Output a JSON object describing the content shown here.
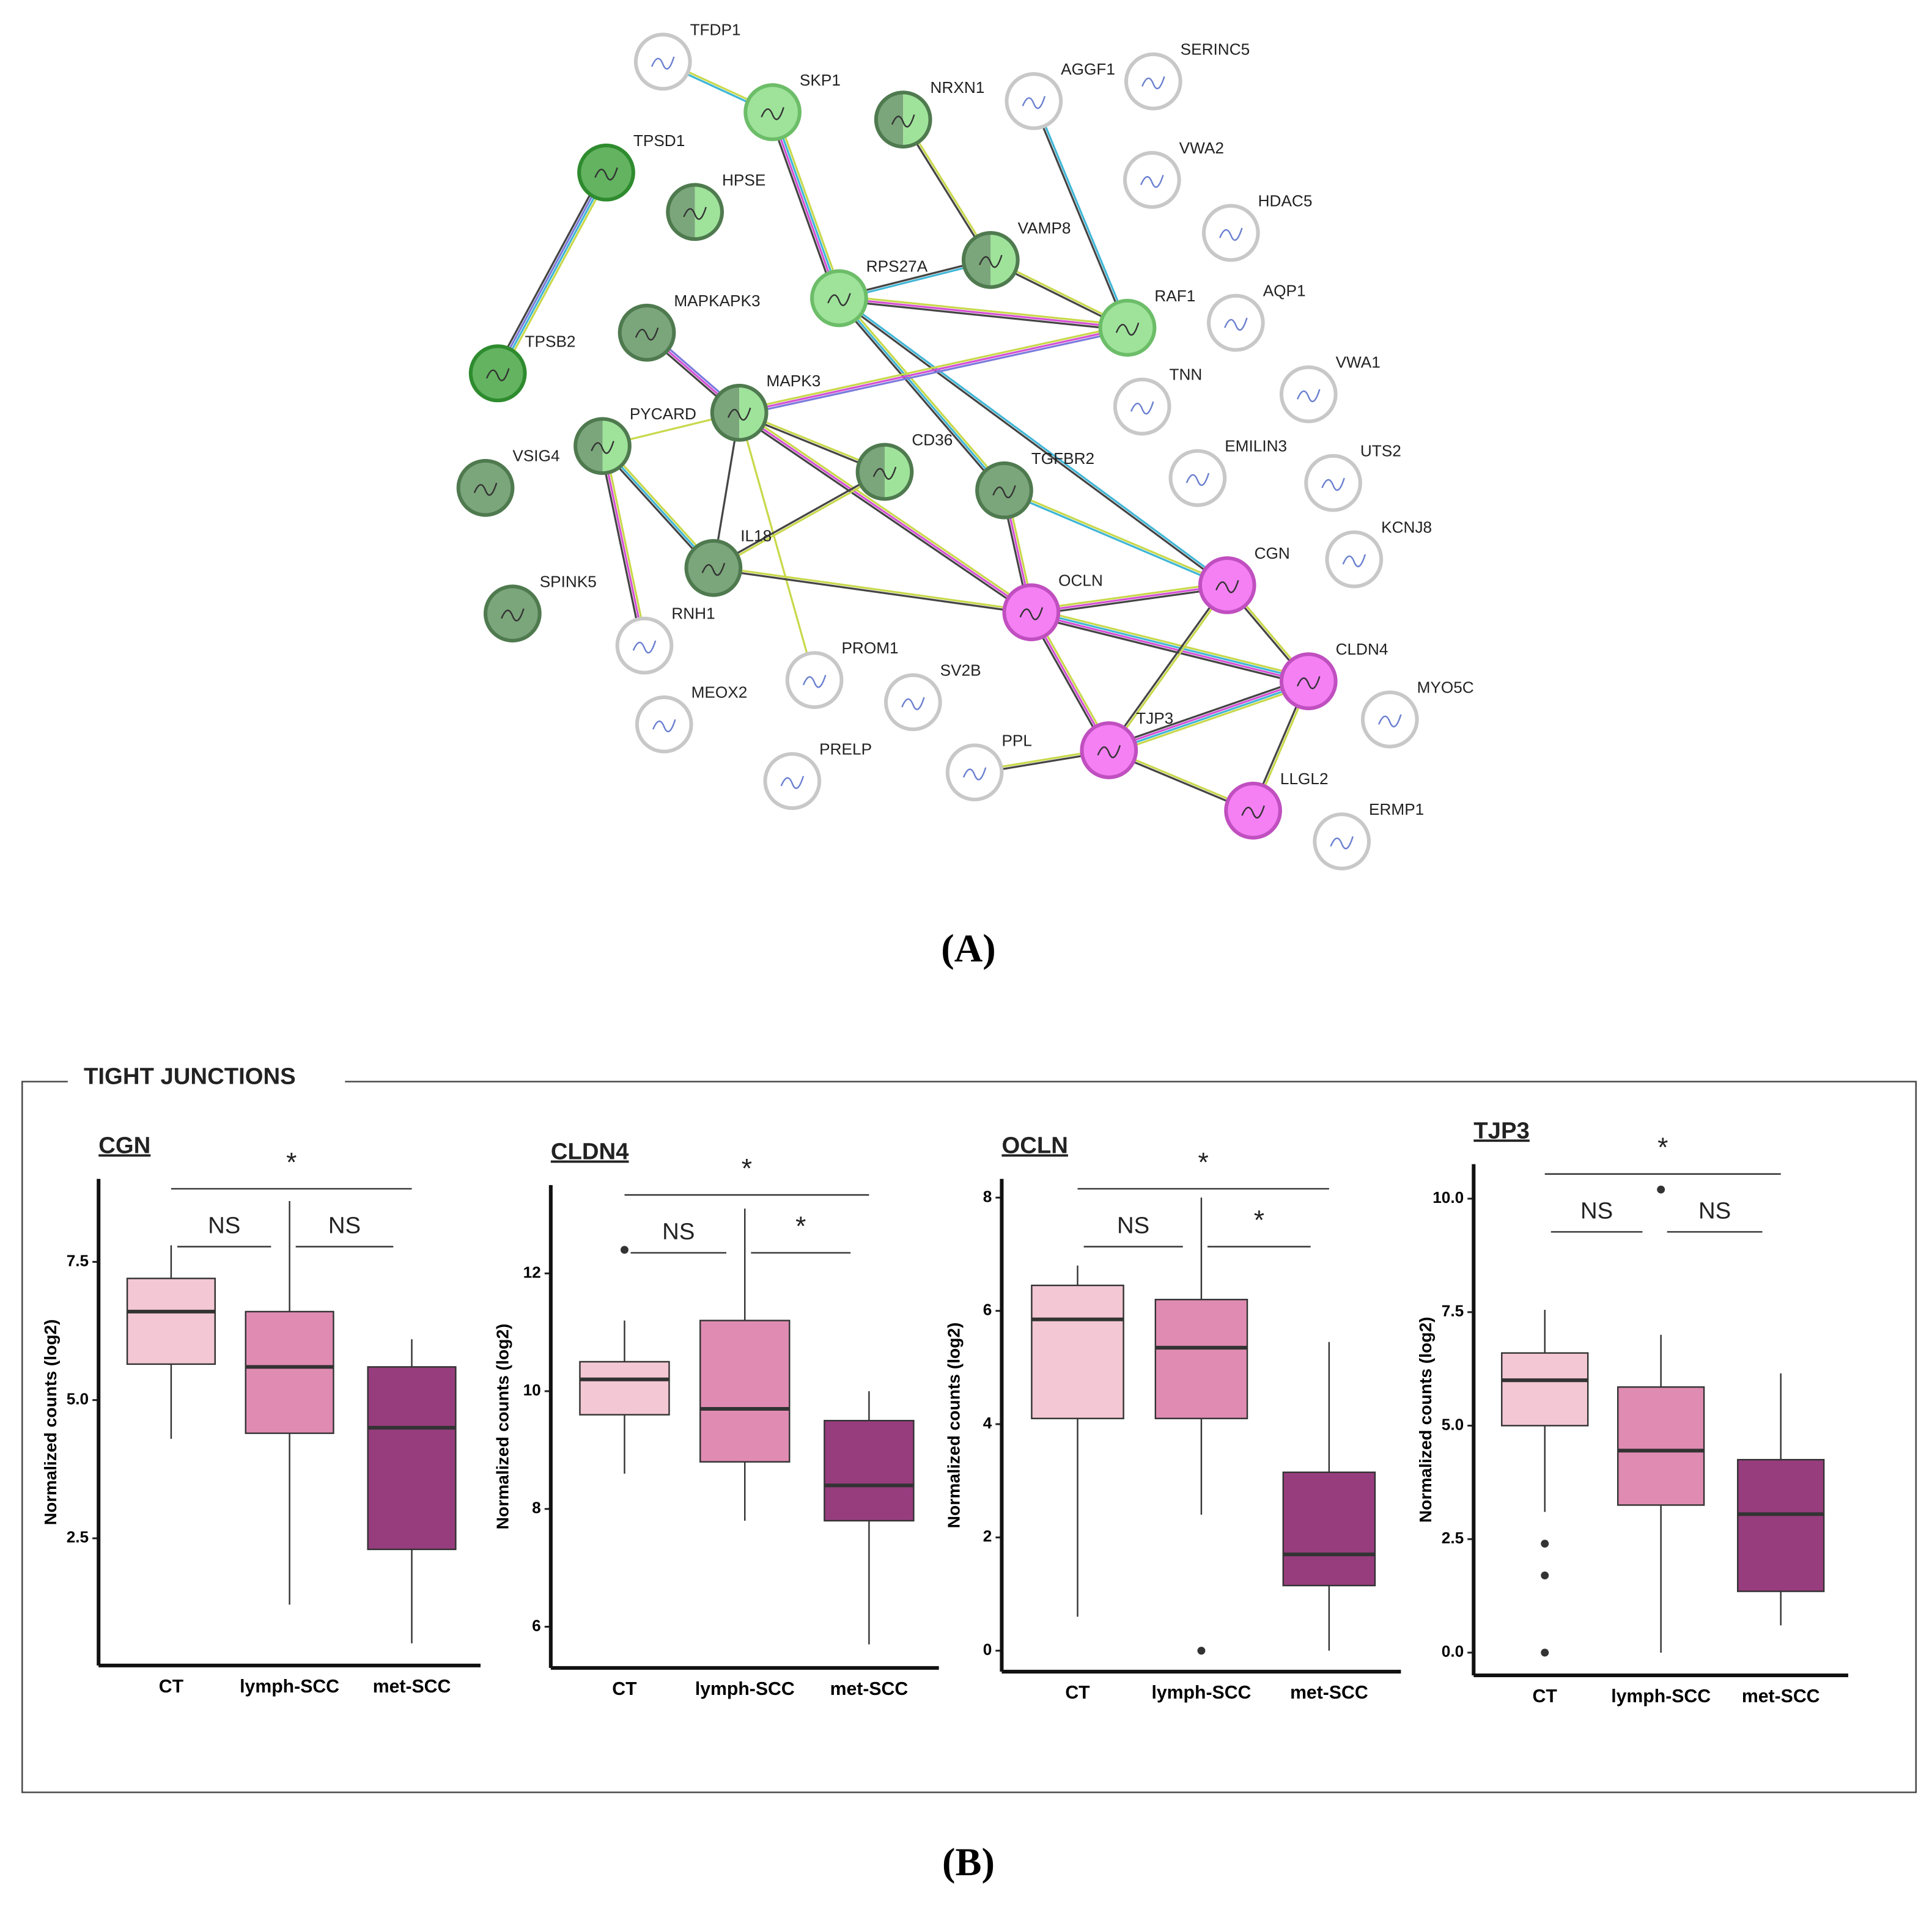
{
  "network": {
    "nodes": [
      {
        "label": "TFDP1"
      },
      {
        "label": "SKP1"
      },
      {
        "label": "NRXN1"
      },
      {
        "label": "AGGF1"
      },
      {
        "label": "SERINC5"
      },
      {
        "label": "TPSD1"
      },
      {
        "label": "HPSE"
      },
      {
        "label": "VWA2"
      },
      {
        "label": "HDAC5"
      },
      {
        "label": "VAMP8"
      },
      {
        "label": "RPS27A"
      },
      {
        "label": "MAPKAPK3"
      },
      {
        "label": "AQP1"
      },
      {
        "label": "RAF1"
      },
      {
        "label": "TPSB2"
      },
      {
        "label": "MAPK3"
      },
      {
        "label": "VWA1"
      },
      {
        "label": "TNN"
      },
      {
        "label": "PYCARD"
      },
      {
        "label": "VSIG4"
      },
      {
        "label": "CD36"
      },
      {
        "label": "TGFBR2"
      },
      {
        "label": "EMILIN3"
      },
      {
        "label": "UTS2"
      },
      {
        "label": "IL18"
      },
      {
        "label": "KCNJ8"
      },
      {
        "label": "CGN"
      },
      {
        "label": "OCLN"
      },
      {
        "label": "SPINK5"
      },
      {
        "label": "RNH1"
      },
      {
        "label": "CLDN4"
      },
      {
        "label": "PROM1"
      },
      {
        "label": "SV2B"
      },
      {
        "label": "MEOX2"
      },
      {
        "label": "MYO5C"
      },
      {
        "label": "PRELP"
      },
      {
        "label": "PPL"
      },
      {
        "label": "TJP3"
      },
      {
        "label": "LLGL2"
      },
      {
        "label": "ERMP1"
      }
    ]
  },
  "panel_labels": [
    "(A)",
    "(B)"
  ],
  "section_title": "TIGHT JUNCTIONS",
  "chart_data": [
    {
      "type": "box",
      "title": "CGN",
      "y_label": "Normalized counts (log2)",
      "categories": [
        "CT",
        "lymph-SCC",
        "met-SCC"
      ],
      "colors": [
        "#f3c7d3",
        "#e08bb2",
        "#973d7e"
      ],
      "boxes": [
        {
          "whisker_low": 4.3,
          "q1": 5.65,
          "median": 6.6,
          "q3": 7.2,
          "whisker_high": 7.8
        },
        {
          "whisker_low": 1.3,
          "q1": 4.4,
          "median": 5.6,
          "q3": 6.6,
          "whisker_high": 8.6
        },
        {
          "whisker_low": 0.6,
          "q1": 2.3,
          "median": 4.5,
          "q3": 5.6,
          "whisker_high": 6.1
        }
      ],
      "ylim": [
        0.2,
        9.0
      ],
      "yticks": [
        2.5,
        {
          "value": 5,
          "label": "5.0"
        },
        7.5
      ],
      "comparisons": [
        {
          "groups": [
            "CT",
            "met-SCC"
          ],
          "label": "*"
        },
        {
          "groups": [
            "CT",
            "lymph-SCC"
          ],
          "label": "NS"
        },
        {
          "groups": [
            "lymph-SCC",
            "met-SCC"
          ],
          "label": "NS"
        }
      ]
    },
    {
      "type": "box",
      "title": "CLDN4",
      "y_label": "Normalized counts (log2)",
      "categories": [
        "CT",
        "lymph-SCC",
        "met-SCC"
      ],
      "colors": [
        "#f3c7d3",
        "#e08bb2",
        "#973d7e"
      ],
      "boxes": [
        {
          "whisker_low": 8.6,
          "q1": 9.6,
          "median": 10.2,
          "q3": 10.5,
          "whisker_high": 11.2,
          "outliers": [
            12.4
          ]
        },
        {
          "whisker_low": 7.8,
          "q1": 8.8,
          "median": 9.7,
          "q3": 11.2,
          "whisker_high": 13.1
        },
        {
          "whisker_low": 5.7,
          "q1": 7.8,
          "median": 8.4,
          "q3": 9.5,
          "whisker_high": 10.0
        }
      ],
      "ylim": [
        5.3,
        13.5
      ],
      "yticks": [
        6,
        8,
        10,
        12
      ],
      "comparisons": [
        {
          "groups": [
            "CT",
            "met-SCC"
          ],
          "label": "*"
        },
        {
          "groups": [
            "CT",
            "lymph-SCC"
          ],
          "label": "NS"
        },
        {
          "groups": [
            "lymph-SCC",
            "met-SCC"
          ],
          "label": "*"
        }
      ]
    },
    {
      "type": "box",
      "title": "OCLN",
      "y_label": "Normalized counts (log2)",
      "categories": [
        "CT",
        "lymph-SCC",
        "met-SCC"
      ],
      "colors": [
        "#f3c7d3",
        "#e08bb2",
        "#973d7e"
      ],
      "boxes": [
        {
          "whisker_low": 0.6,
          "q1": 4.1,
          "median": 5.85,
          "q3": 6.45,
          "whisker_high": 6.8
        },
        {
          "whisker_low": 2.4,
          "q1": 4.1,
          "median": 5.35,
          "q3": 6.2,
          "whisker_high": 8.0,
          "outliers": [
            0
          ]
        },
        {
          "whisker_low": 0,
          "q1": 1.15,
          "median": 1.7,
          "q3": 3.15,
          "whisker_high": 5.45
        }
      ],
      "ylim": [
        -0.37,
        8.33
      ],
      "yticks": [
        0,
        2,
        4,
        6,
        8
      ],
      "comparisons": [
        {
          "groups": [
            "CT",
            "met-SCC"
          ],
          "label": "*"
        },
        {
          "groups": [
            "CT",
            "lymph-SCC"
          ],
          "label": "NS"
        },
        {
          "groups": [
            "lymph-SCC",
            "met-SCC"
          ],
          "label": "*"
        }
      ]
    },
    {
      "type": "box",
      "title": "TJP3",
      "y_label": "Normalized counts (log2)",
      "categories": [
        "CT",
        "lymph-SCC",
        "met-SCC"
      ],
      "colors": [
        "#f3c7d3",
        "#e08bb2",
        "#973d7e"
      ],
      "boxes": [
        {
          "whisker_low": 3.1,
          "q1": 5.0,
          "median": 6.0,
          "q3": 6.6,
          "whisker_high": 7.55,
          "outliers": [
            2.4,
            1.7,
            0
          ]
        },
        {
          "whisker_low": 0,
          "q1": 3.25,
          "median": 4.45,
          "q3": 5.85,
          "whisker_high": 7.0,
          "outliers": [
            10.2
          ]
        },
        {
          "whisker_low": 0.6,
          "q1": 1.35,
          "median": 3.05,
          "q3": 4.25,
          "whisker_high": 6.15
        }
      ],
      "ylim": [
        -0.5,
        10.76
      ],
      "yticks": [
        {
          "value": 0,
          "label": "0.0"
        },
        2.5,
        {
          "value": 5,
          "label": "5.0"
        },
        7.5,
        {
          "value": 10,
          "label": "10.0"
        }
      ],
      "comparisons": [
        {
          "groups": [
            "CT",
            "met-SCC"
          ],
          "label": "*"
        },
        {
          "groups": [
            "CT",
            "lymph-SCC"
          ],
          "label": "NS"
        },
        {
          "groups": [
            "lymph-SCC",
            "met-SCC"
          ],
          "label": "NS"
        }
      ]
    }
  ]
}
